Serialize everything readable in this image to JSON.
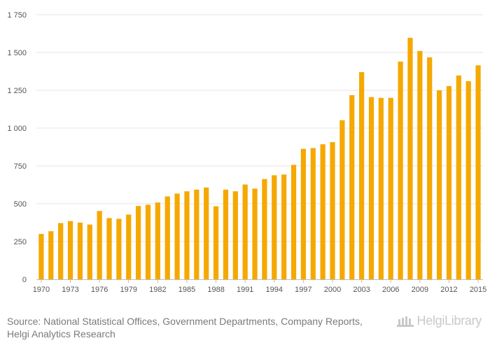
{
  "chart_data": {
    "type": "bar",
    "title": "",
    "xlabel": "",
    "ylabel": "",
    "ylim": [
      0,
      1750
    ],
    "yticks": [
      0,
      250,
      500,
      750,
      1000,
      1250,
      1500,
      1750
    ],
    "ytick_labels": [
      "0",
      "250",
      "500",
      "750",
      "1 000",
      "1 250",
      "1 500",
      "1 750"
    ],
    "categories": [
      "1970",
      "1971",
      "1972",
      "1973",
      "1974",
      "1975",
      "1976",
      "1977",
      "1978",
      "1979",
      "1980",
      "1981",
      "1982",
      "1983",
      "1984",
      "1985",
      "1986",
      "1987",
      "1988",
      "1989",
      "1990",
      "1991",
      "1992",
      "1993",
      "1994",
      "1995",
      "1996",
      "1997",
      "1998",
      "1999",
      "2000",
      "2001",
      "2002",
      "2003",
      "2004",
      "2005",
      "2006",
      "2007",
      "2008",
      "2009",
      "2010",
      "2011",
      "2012",
      "2013",
      "2014",
      "2015"
    ],
    "xtick_labels": [
      "1970",
      "1973",
      "1976",
      "1979",
      "1982",
      "1985",
      "1988",
      "1991",
      "1994",
      "1997",
      "2000",
      "2003",
      "2006",
      "2009",
      "2012",
      "2015"
    ],
    "values": [
      300,
      318,
      372,
      385,
      375,
      362,
      452,
      405,
      400,
      428,
      485,
      493,
      508,
      548,
      567,
      582,
      593,
      607,
      483,
      593,
      582,
      627,
      600,
      663,
      688,
      693,
      757,
      863,
      868,
      893,
      907,
      1052,
      1218,
      1370,
      1205,
      1200,
      1200,
      1440,
      1597,
      1510,
      1468,
      1250,
      1278,
      1348,
      1310,
      1415
    ],
    "grid": true,
    "bar_color": "#f5a800",
    "grid_color": "#e6e6e6",
    "axis_color": "#bdbdbd",
    "tick_text_color": "#555555"
  },
  "footer": {
    "source_label": "Source: ",
    "source_text": "National Statistical Offices, Government Departments, Company Reports, Helgi Analytics Research"
  },
  "logo": {
    "text_part1": "Helgi",
    "text_part2": "Library"
  }
}
